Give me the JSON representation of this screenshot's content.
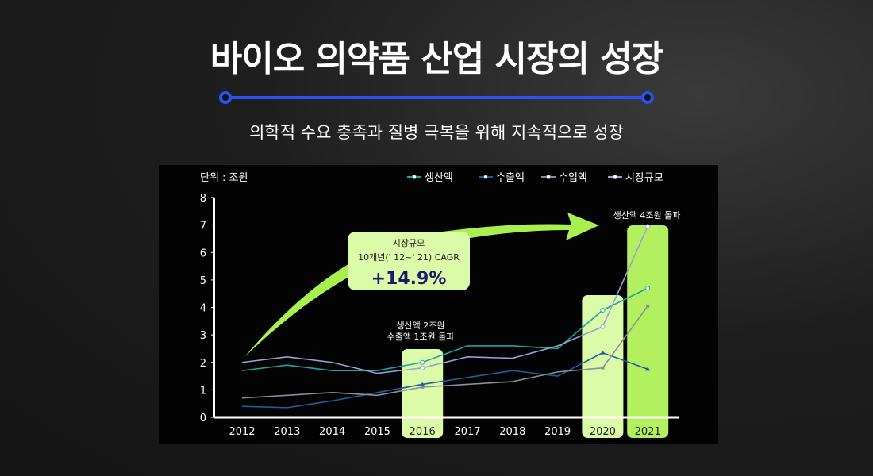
{
  "header": {
    "title": "바이오 의약품 산업 시장의 성장",
    "subtitle": "의학적 수요 충족과 질병 극복을 위해 지속적으로 성장"
  },
  "colors": {
    "accent": "#2a52f0",
    "highlight": "#dcfba8",
    "highlight_strong": "#b2f060",
    "arrow": "#a9ef50"
  },
  "chart_data": {
    "type": "line",
    "unit_label": "단위 : 조원",
    "categories": [
      "2012",
      "2013",
      "2014",
      "2015",
      "2016",
      "2017",
      "2018",
      "2019",
      "2020",
      "2021"
    ],
    "ylim": [
      0,
      8
    ],
    "yticks": [
      0,
      1,
      2,
      3,
      4,
      5,
      6,
      7,
      8
    ],
    "legend_position": "top-right",
    "series": [
      {
        "name": "생산액",
        "color": "#1aa6a6",
        "marker": "circle",
        "values": [
          1.7,
          1.9,
          1.7,
          1.7,
          2.0,
          2.6,
          2.6,
          2.5,
          3.9,
          4.7
        ]
      },
      {
        "name": "수출액",
        "color": "#1a5f9e",
        "marker": "triangle",
        "values": [
          0.4,
          0.35,
          0.6,
          0.9,
          1.2,
          1.45,
          1.7,
          1.5,
          2.35,
          1.75
        ]
      },
      {
        "name": "수입액",
        "color": "#8a8f9a",
        "marker": "square",
        "values": [
          0.7,
          0.8,
          0.9,
          0.8,
          1.1,
          1.2,
          1.3,
          1.65,
          1.8,
          4.05
        ]
      },
      {
        "name": "시장규모",
        "color": "#9aa0d8",
        "marker": "circle",
        "values": [
          2.0,
          2.2,
          2.0,
          1.6,
          1.8,
          2.2,
          2.15,
          2.6,
          3.3,
          6.95
        ]
      }
    ],
    "highlights": [
      "2016",
      "2020",
      "2021"
    ],
    "annotations": {
      "cagr_title": "시장규모",
      "cagr_period": "10개년(' 12~' 21) CAGR",
      "cagr_value": "+14.9%",
      "note_2016_line1": "생산액 2조원",
      "note_2016_line2": "수출액 1조원 돌파",
      "note_2021": "생산액 4조원 돌파"
    }
  }
}
